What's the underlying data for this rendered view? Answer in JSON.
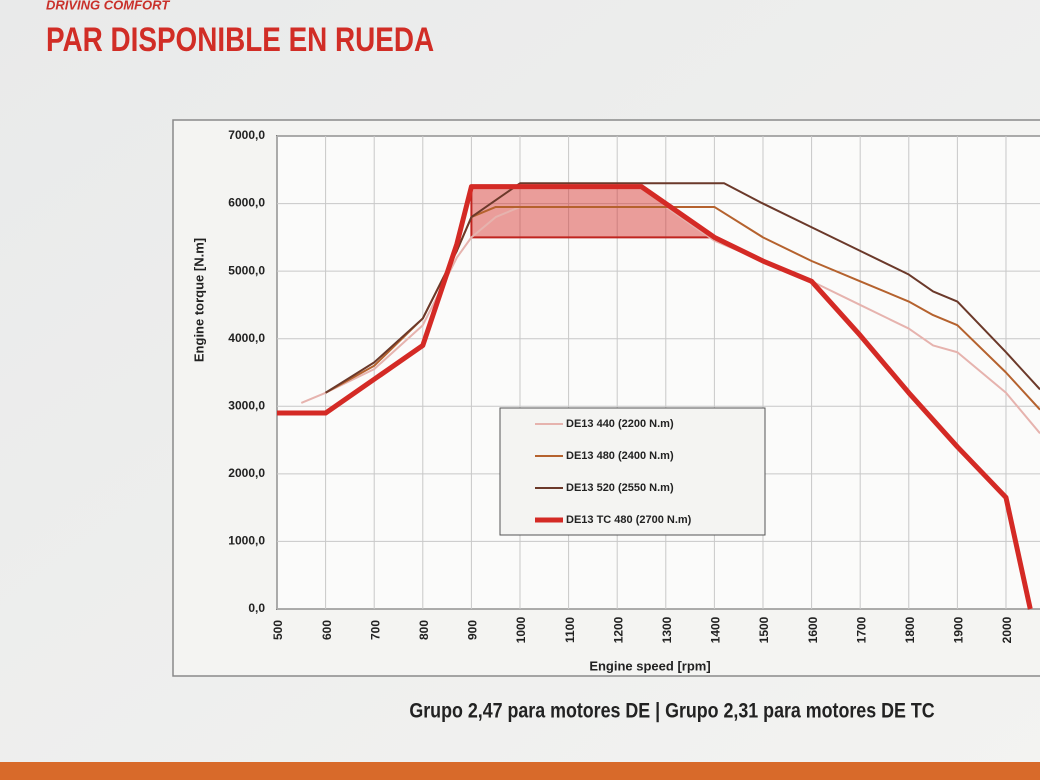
{
  "slide": {
    "kicker": "DRIVING COMFORT",
    "title": "PAR DISPONIBLE EN RUEDA",
    "footer": "Grupo 2,47 para motores DE | Grupo 2,31 para motores DE TC"
  },
  "chart_data": {
    "type": "line",
    "xlabel": "Engine speed [rpm]",
    "ylabel": "Engine torque [N.m]",
    "xlim": [
      500,
      2070
    ],
    "ylim": [
      0,
      7000
    ],
    "xticks": [
      500,
      600,
      700,
      800,
      900,
      1000,
      1100,
      1200,
      1300,
      1400,
      1500,
      1600,
      1700,
      1800,
      1900,
      2000
    ],
    "yticks": [
      {
        "value": 0,
        "label": "0,0"
      },
      {
        "value": 1000,
        "label": "1000,0"
      },
      {
        "value": 2000,
        "label": "2000,0"
      },
      {
        "value": 3000,
        "label": "3000,0"
      },
      {
        "value": 4000,
        "label": "4000,0"
      },
      {
        "value": 5000,
        "label": "5000,0"
      },
      {
        "value": 6000,
        "label": "6000,0"
      },
      {
        "value": 7000,
        "label": "7000,0"
      }
    ],
    "grid": true,
    "legend": "center",
    "series": [
      {
        "name": "DE13 440 (2200 N.m)",
        "color": "#e6b3ae",
        "x": [
          550,
          600,
          700,
          800,
          870,
          900,
          950,
          1000,
          1300,
          1400,
          1500,
          1600,
          1700,
          1800,
          1850,
          1900,
          2000,
          2070
        ],
        "values": [
          3050,
          3200,
          3550,
          4200,
          5200,
          5500,
          5800,
          5950,
          5950,
          5450,
          5150,
          4850,
          4500,
          4150,
          3900,
          3800,
          3200,
          2600
        ]
      },
      {
        "name": "DE13 480 (2400 N.m)",
        "color": "#b5622e",
        "x": [
          600,
          700,
          800,
          870,
          900,
          950,
          1400,
          1500,
          1600,
          1700,
          1800,
          1850,
          1900,
          2000,
          2070
        ],
        "values": [
          3200,
          3600,
          4300,
          5300,
          5800,
          5950,
          5950,
          5500,
          5150,
          4850,
          4550,
          4350,
          4200,
          3500,
          2950
        ]
      },
      {
        "name": "DE13 520 (2550 N.m)",
        "color": "#6b392a",
        "x": [
          600,
          700,
          800,
          870,
          900,
          1000,
          1420,
          1500,
          1600,
          1700,
          1800,
          1850,
          1900,
          2000,
          2070
        ],
        "values": [
          3200,
          3650,
          4300,
          5300,
          5800,
          6300,
          6300,
          6000,
          5650,
          5300,
          4950,
          4700,
          4550,
          3800,
          3250
        ]
      },
      {
        "name": "DE13 TC 480 (2700 N.m)",
        "color": "#d42a25",
        "x": [
          500,
          600,
          700,
          800,
          870,
          900,
          1250,
          1300,
          1400,
          1500,
          1600,
          1700,
          1800,
          1900,
          2000,
          2050
        ],
        "values": [
          2900,
          2900,
          3400,
          3900,
          5400,
          6250,
          6250,
          6000,
          5500,
          5150,
          4850,
          4050,
          3200,
          2400,
          1650,
          0
        ]
      }
    ]
  }
}
